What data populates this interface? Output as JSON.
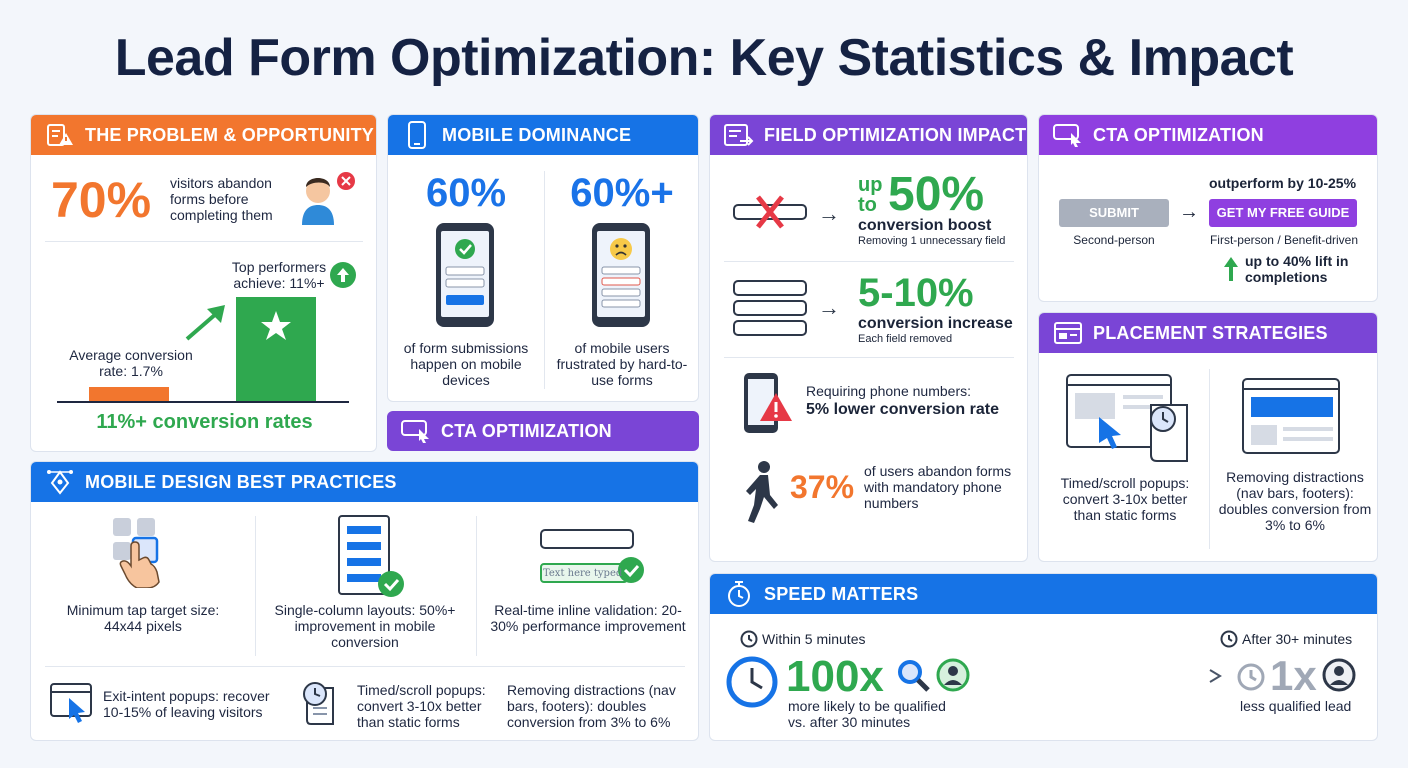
{
  "title": "Lead Form Optimization: Key Statistics & Impact",
  "problem": {
    "header": "THE PROBLEM & OPPORTUNITY",
    "stat": "70%",
    "stat_text": "visitors abandon forms before completing them",
    "top_label": "Top performers achieve: 11%+",
    "avg_label": "Average conversion rate: 1.7%",
    "bottom_text": "11%+ conversion rates",
    "avg_value": 1.7,
    "top_value": 11
  },
  "mobile": {
    "header": "MOBILE DOMINANCE",
    "left_stat": "60%",
    "left_text": "of form submissions happen on mobile devices",
    "right_stat": "60%+",
    "right_text": "of mobile users frustrated by hard-to-use forms"
  },
  "cta_mid": {
    "header": "CTA OPTIMIZATION"
  },
  "field": {
    "header": "FIELD OPTIMIZATION IMPACT",
    "r1_up": "up",
    "r1_to": "to",
    "r1_big": "50%",
    "r1_line": "conversion boost",
    "r1_sub": "Removing 1 unnecessary field",
    "r2_big": "5-10%",
    "r2_line": "conversion increase",
    "r2_sub": "Each field removed",
    "r3_line1": "Requiring phone numbers:",
    "r3_line2": "5% lower conversion rate",
    "r4_big": "37%",
    "r4_text": "of users abandon forms with mandatory phone numbers"
  },
  "cta": {
    "header": "CTA OPTIMIZATION",
    "outperform": "outperform by 10-25%",
    "btn_submit": "SUBMIT",
    "btn_guide": "GET MY FREE GUIDE",
    "left_caption": "Second-person",
    "right_caption": "First-person / Benefit-driven",
    "lift": "up to 40% lift in completions"
  },
  "placement": {
    "header": "PLACEMENT STRATEGIES",
    "left_text": "Timed/scroll popups: convert 3-10x better than static forms",
    "right_text": "Removing distractions (nav bars, footers): doubles conversion from 3% to 6%"
  },
  "best": {
    "header": "MOBILE DESIGN BEST PRACTICES",
    "c1": "Minimum tap target size: 44x44 pixels",
    "c2": "Single-column layouts: 50%+ improvement in mobile conversion",
    "c3": "Real-time inline validation: 20-30% performance improvement",
    "field_text": "Text here typed",
    "b1": "Exit-intent popups: recover 10-15% of leaving visitors",
    "b2": "Timed/scroll popups: convert 3-10x better than static forms",
    "b3": "Removing distractions (nav bars, footers): doubles conversion from 3% to 6%"
  },
  "speed": {
    "header": "SPEED MATTERS",
    "left_label": "Within 5 minutes",
    "right_label": "After 30+ minutes",
    "big_left": "100x",
    "left_text": "more likely to be qualified vs. after 30 minutes",
    "big_right": "1x",
    "right_text": "less qualified lead"
  },
  "colors": {
    "orange": "#f2762e",
    "blue": "#1673e6",
    "purple": "#7a45d6",
    "green": "#2fa84f"
  }
}
